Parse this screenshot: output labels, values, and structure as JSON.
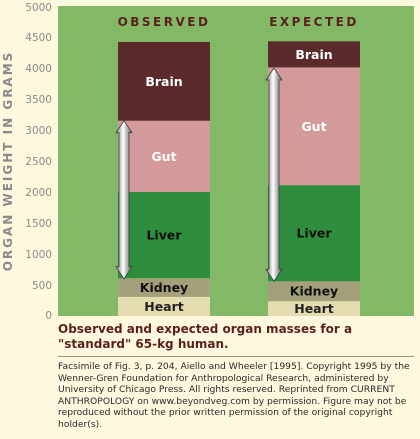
{
  "chart_data": {
    "type": "bar",
    "stacked": true,
    "ylabel": "ORGAN WEIGHT IN GRAMS",
    "ylim": [
      0,
      5000
    ],
    "yticks": [
      "0",
      "500",
      "1000",
      "1500",
      "2000",
      "2500",
      "3000",
      "3500",
      "4000",
      "4500",
      "5000"
    ],
    "grid": false,
    "categories": [
      "OBSERVED",
      "EXPECTED"
    ],
    "series": [
      {
        "name": "Heart",
        "color": "#e4dcb0",
        "text_color": "#222222",
        "values": [
          310,
          240
        ]
      },
      {
        "name": "Kidney",
        "color": "#a5a07c",
        "text_color": "#111111",
        "values": [
          300,
          320
        ]
      },
      {
        "name": "Liver",
        "color": "#2f8e3e",
        "text_color": "#0d0d0d",
        "values": [
          1390,
          1550
        ]
      },
      {
        "name": "Gut",
        "color": "#d4999b",
        "text_color": "#ffffff",
        "values": [
          1150,
          1900
        ]
      },
      {
        "name": "Brain",
        "color": "#5b2a2a",
        "text_color": "#ffffff",
        "values": [
          1270,
          420
        ]
      }
    ],
    "arrows": [
      {
        "category": "OBSERVED",
        "from": 3150,
        "to": 600
      },
      {
        "category": "EXPECTED",
        "from": 4000,
        "to": 560
      }
    ]
  },
  "caption": "Observed and expected organ masses for a \"standard\" 65-kg human.",
  "credit": "Facsimile of Fig. 3, p. 204, Aiello and Wheeler [1995]. Copyright 1995 by the Wenner-Gren Foundation for Anthropological Research, administered by University of Chicago Press. All rights reserved. Reprinted from CURRENT ANTHROPOLOGY on www.beyondveg.com by permission. Figure may not be reproduced without the prior written permission of the original copyright holder(s).",
  "colors": {
    "plot_background": "#82b866",
    "page_background": "#fdf8de",
    "category_label": "#5b1f1f",
    "axis_text": "#8a8a8a"
  }
}
